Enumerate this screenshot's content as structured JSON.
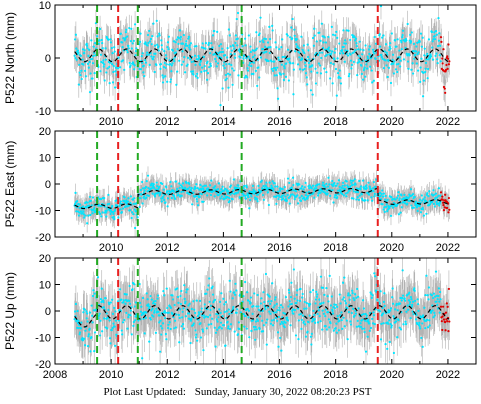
{
  "footer": {
    "label": "Plot Last Updated:",
    "timestamp": "Sunday, January 30, 2022 08:20:23 PST"
  },
  "colors": {
    "raw_points": "#00e5ff",
    "error_bars": "#b0b0b0",
    "recent_points": "#e00000",
    "model": "#000000",
    "green_lines": "#22aa22",
    "red_lines": "#e82020"
  },
  "chart_data": [
    {
      "type": "scatter",
      "id": "north",
      "ylabel": "P522 North (mm)",
      "xlim": [
        2008,
        2023
      ],
      "ylim": [
        -10,
        10
      ],
      "yticks": [
        -10,
        0,
        10
      ],
      "xticks": [
        2010,
        2012,
        2014,
        2016,
        2018,
        2020,
        2022
      ],
      "xtick_labels": [
        "2010",
        "2012",
        "2014",
        "2016",
        "2018",
        "2020",
        "2022"
      ],
      "data_range": [
        2008.7,
        2022.05
      ],
      "green_lines": [
        2009.5,
        2010.95,
        2014.65
      ],
      "red_lines": [
        2010.25,
        2019.5
      ],
      "model_trend": {
        "baseline": 0.5,
        "amplitude": 1.2,
        "slope_mm_per_yr": 0.0,
        "steps": []
      },
      "scatter_spread": 2.5,
      "error_bar": 2.5
    },
    {
      "type": "scatter",
      "id": "east",
      "ylabel": "P522 East (mm)",
      "xlim": [
        2008,
        2023
      ],
      "ylim": [
        -20,
        20
      ],
      "yticks": [
        -20,
        -10,
        0,
        10,
        20
      ],
      "xticks": [
        2010,
        2012,
        2014,
        2016,
        2018,
        2020,
        2022
      ],
      "xtick_labels": [
        "2010",
        "2012",
        "2014",
        "2016",
        "2018",
        "2020",
        "2022"
      ],
      "data_range": [
        2008.7,
        2022.05
      ],
      "green_lines": [
        2009.5,
        2010.95,
        2014.65
      ],
      "red_lines": [
        2010.25,
        2019.5
      ],
      "model_trend": {
        "baseline": -8.5,
        "amplitude": 0.8,
        "slope_mm_per_yr": 0.1,
        "steps": [
          [
            2010.95,
            5.0
          ],
          [
            2019.5,
            -4.5
          ]
        ]
      },
      "scatter_spread": 2.0,
      "error_bar": 3.5
    },
    {
      "type": "scatter",
      "id": "up",
      "ylabel": "P522 Up (mm)",
      "xlim": [
        2008,
        2023
      ],
      "ylim": [
        -20,
        20
      ],
      "yticks": [
        -20,
        -10,
        0,
        10,
        20
      ],
      "xticks": [
        2008,
        2010,
        2012,
        2014,
        2016,
        2018,
        2020,
        2022
      ],
      "xtick_labels": [
        "2008",
        "2010",
        "2012",
        "2014",
        "2016",
        "2018",
        "2020",
        "2022"
      ],
      "data_range": [
        2008.7,
        2022.05
      ],
      "green_lines": [
        2009.5,
        2010.95,
        2014.65
      ],
      "red_lines": [
        2010.25,
        2019.5
      ],
      "model_trend": {
        "baseline": -3.5,
        "amplitude": 2.5,
        "slope_mm_per_yr": 0.0,
        "steps": [
          [
            2009.5,
            3.0
          ]
        ]
      },
      "scatter_spread": 5.0,
      "error_bar": 7.0
    }
  ]
}
